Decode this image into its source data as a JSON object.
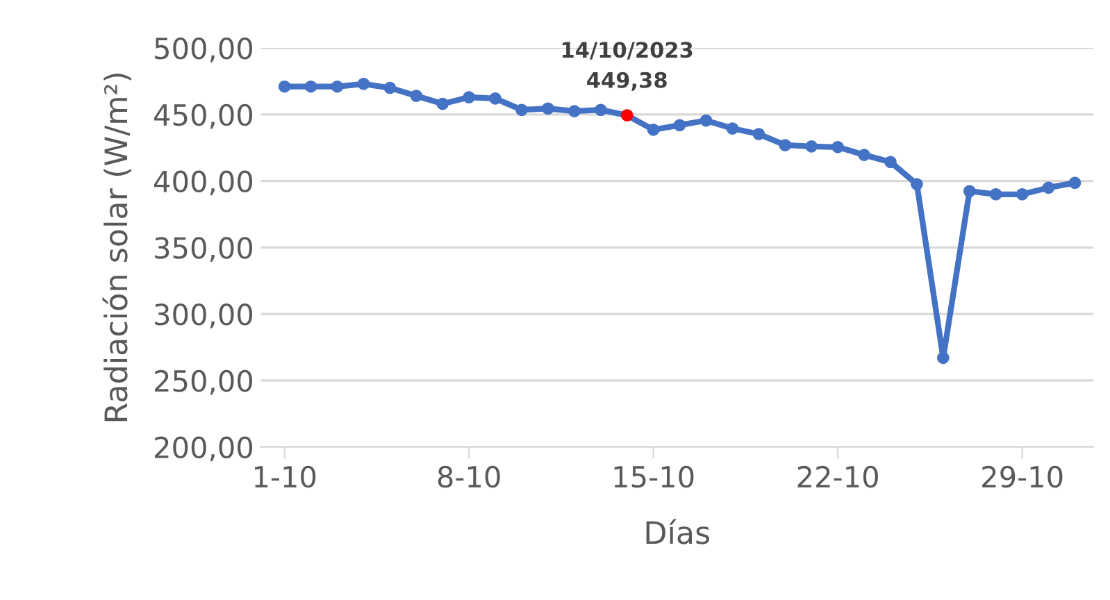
{
  "chart_data": {
    "type": "line",
    "xlabel": "Días",
    "ylabel": "Radiación solar (W/m²)",
    "categories": [
      "1-10",
      null,
      null,
      null,
      null,
      null,
      null,
      "8-10",
      null,
      null,
      null,
      null,
      null,
      null,
      "15-10",
      null,
      null,
      null,
      null,
      null,
      null,
      "22-10",
      null,
      null,
      null,
      null,
      null,
      null,
      "29-10",
      null,
      null
    ],
    "series": [
      {
        "color": "#4472c4",
        "colors": [
          "#4472c4",
          "#4472c4",
          "#4472c4",
          "#4472c4",
          "#4472c4",
          "#4472c4",
          "#4472c4",
          "#4472c4",
          "#4472c4",
          "#4472c4",
          "#4472c4",
          "#4472c4",
          "#4472c4",
          "#ff0000",
          "#4472c4",
          "#4472c4",
          "#4472c4",
          "#4472c4",
          "#4472c4",
          "#4472c4",
          "#4472c4",
          "#4472c4",
          "#4472c4",
          "#4472c4",
          "#4472c4",
          "#4472c4",
          "#4472c4",
          "#4472c4",
          "#4472c4",
          "#4472c4",
          "#4472c4"
        ],
        "values": [
          471,
          471,
          471,
          473,
          470,
          464,
          458,
          463,
          462,
          453.5,
          454.5,
          452.5,
          453.5,
          449.38,
          438.5,
          442,
          445.5,
          439.5,
          435.3,
          427,
          426,
          425.5,
          419.6,
          414.3,
          397.6,
          267,
          392.4,
          390,
          390,
          395,
          398.6
        ]
      }
    ],
    "annotations": [
      {
        "text": "14/10/2023\n449,38",
        "y": 449.38
      }
    ],
    "ylim": [
      200,
      500
    ],
    "yticks": [
      {
        "value": 200,
        "label": "200,00"
      },
      {
        "value": 250,
        "label": "250,00"
      },
      {
        "value": 300,
        "label": "300,00"
      },
      {
        "value": 350,
        "label": "350,00"
      },
      {
        "value": 400,
        "label": "400,00"
      },
      {
        "value": 450,
        "label": "450,00"
      },
      {
        "value": 500,
        "label": "500,00"
      }
    ],
    "grid": "y",
    "legend": false,
    "marker": "circle",
    "line_style": "solid"
  }
}
